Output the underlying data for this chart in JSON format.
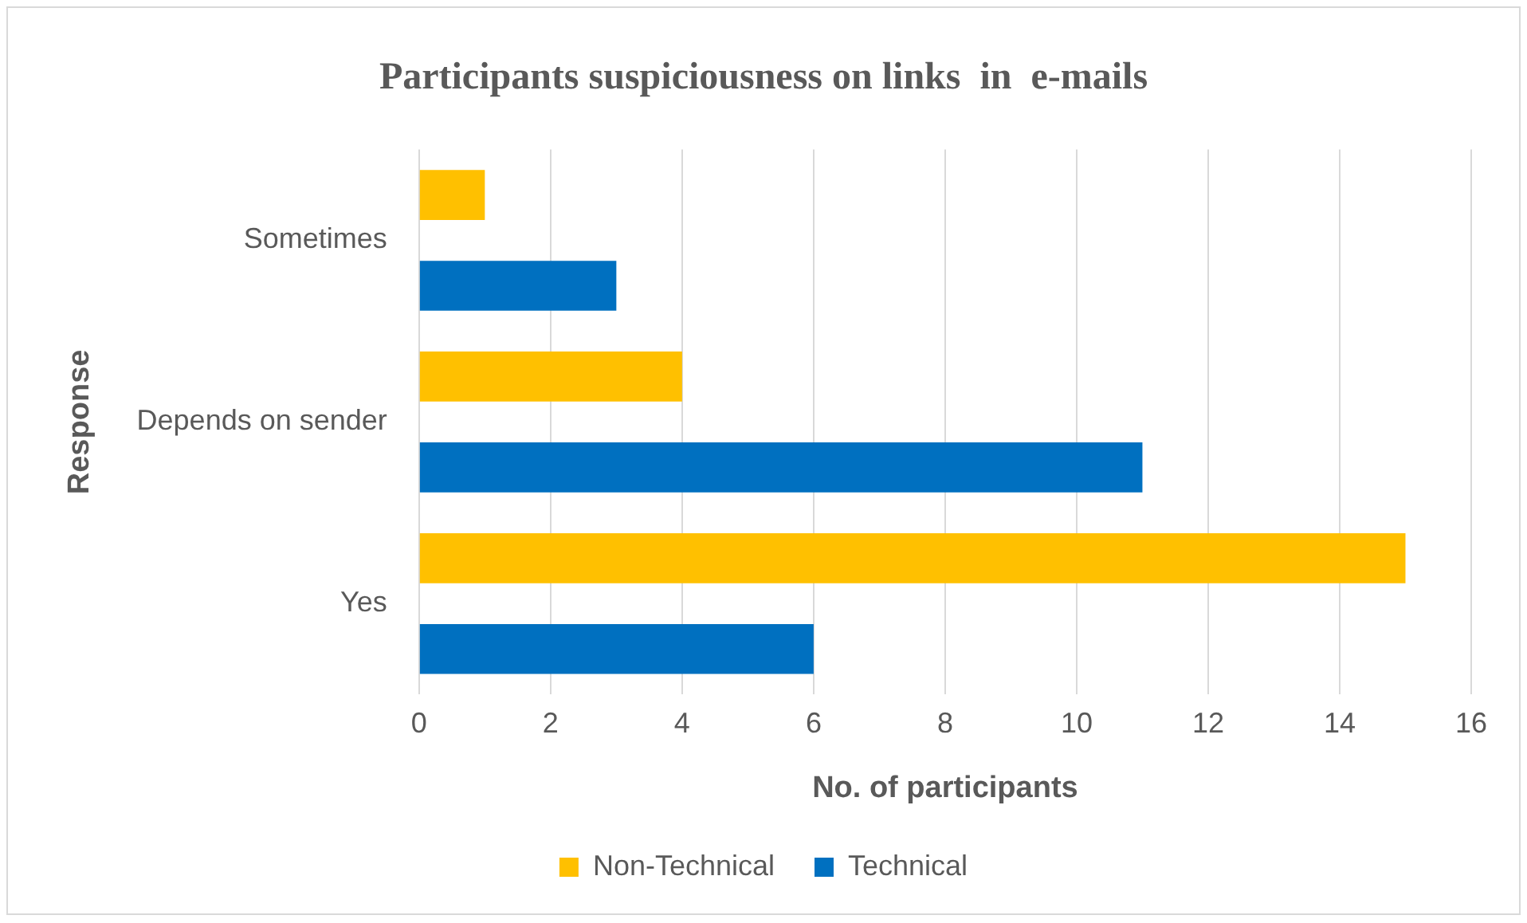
{
  "chart_data": {
    "type": "bar",
    "orientation": "horizontal",
    "title": "Participants suspiciousness on links  in  e-mails",
    "xlabel": "No. of participants",
    "ylabel": "Response",
    "categories": [
      "Sometimes",
      "Depends on sender",
      "Yes"
    ],
    "series": [
      {
        "name": "Non-Technical",
        "color": "#ffc000",
        "values": [
          1,
          4,
          15
        ]
      },
      {
        "name": "Technical",
        "color": "#0070c0",
        "values": [
          3,
          11,
          6
        ]
      }
    ],
    "xlim": [
      0,
      16
    ],
    "xticks": [
      0,
      2,
      4,
      6,
      8,
      10,
      12,
      14,
      16
    ],
    "grid": "x",
    "legend": "bottom"
  }
}
